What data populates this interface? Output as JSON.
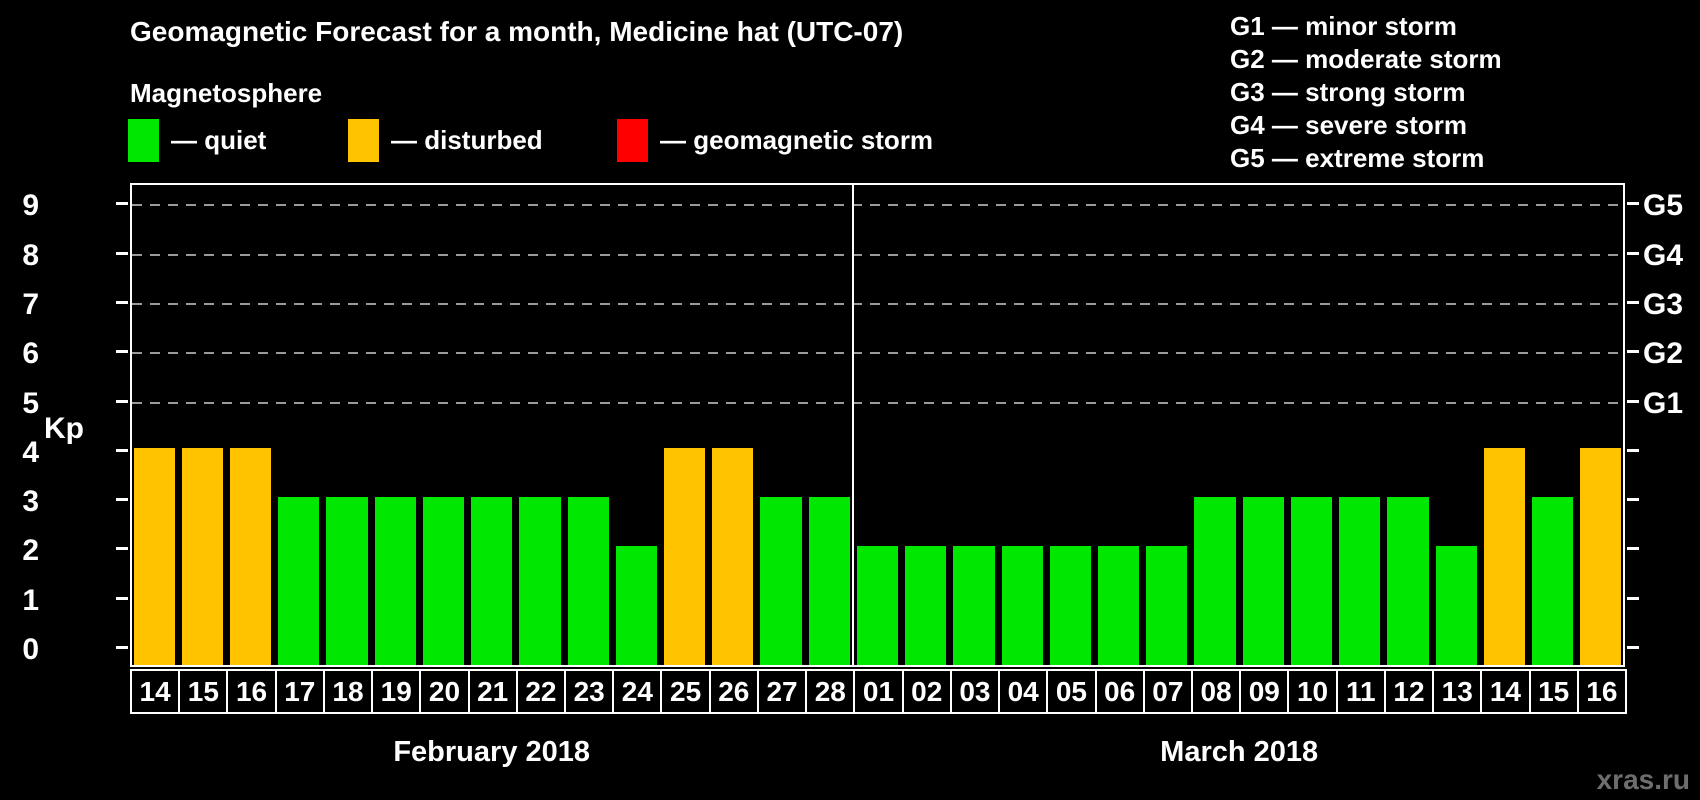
{
  "title": "Geomagnetic Forecast for a month, Medicine hat (UTC-07)",
  "subtitle": "Magnetosphere",
  "legend": {
    "items": [
      {
        "key": "quiet",
        "label": "— quiet",
        "color": "#00e800"
      },
      {
        "key": "disturbed",
        "label": "— disturbed",
        "color": "#ffc300"
      },
      {
        "key": "storm",
        "label": "— geomagnetic storm",
        "color": "#ff0000"
      }
    ]
  },
  "g_scale_legend": [
    "G1 — minor storm",
    "G2 — moderate storm",
    "G3 — strong storm",
    "G4 — severe storm",
    "G5 — extreme storm"
  ],
  "watermark": "xras.ru",
  "chart_data": {
    "type": "bar",
    "title": "Geomagnetic Forecast for a month, Medicine hat (UTC-07)",
    "ylabel": "Kp",
    "ylim": [
      0,
      9
    ],
    "yticks": [
      0,
      1,
      2,
      3,
      4,
      5,
      6,
      7,
      8,
      9
    ],
    "gridlines_at": [
      5,
      6,
      7,
      8,
      9
    ],
    "right_axis_labels": {
      "5": "G1",
      "6": "G2",
      "7": "G3",
      "8": "G4",
      "9": "G5"
    },
    "grid": "dashed-horizontal",
    "legend_position": "top-left",
    "colors": {
      "quiet": "#00e800",
      "disturbed": "#ffc300",
      "storm": "#ff0000"
    },
    "months": [
      {
        "label": "February 2018",
        "days": [
          "14",
          "15",
          "16",
          "17",
          "18",
          "19",
          "20",
          "21",
          "22",
          "23",
          "24",
          "25",
          "26",
          "27",
          "28"
        ],
        "values": [
          4,
          4,
          4,
          3,
          3,
          3,
          3,
          3,
          3,
          3,
          2,
          4,
          4,
          3,
          3
        ],
        "status": [
          "disturbed",
          "disturbed",
          "disturbed",
          "quiet",
          "quiet",
          "quiet",
          "quiet",
          "quiet",
          "quiet",
          "quiet",
          "quiet",
          "disturbed",
          "disturbed",
          "quiet",
          "quiet"
        ]
      },
      {
        "label": "March 2018",
        "days": [
          "01",
          "02",
          "03",
          "04",
          "05",
          "06",
          "07",
          "08",
          "09",
          "10",
          "11",
          "12",
          "13",
          "14",
          "15",
          "16"
        ],
        "values": [
          2,
          2,
          2,
          2,
          2,
          2,
          2,
          3,
          3,
          3,
          3,
          3,
          2,
          4,
          3,
          4
        ],
        "status": [
          "quiet",
          "quiet",
          "quiet",
          "quiet",
          "quiet",
          "quiet",
          "quiet",
          "quiet",
          "quiet",
          "quiet",
          "quiet",
          "quiet",
          "quiet",
          "disturbed",
          "quiet",
          "disturbed"
        ]
      }
    ]
  }
}
